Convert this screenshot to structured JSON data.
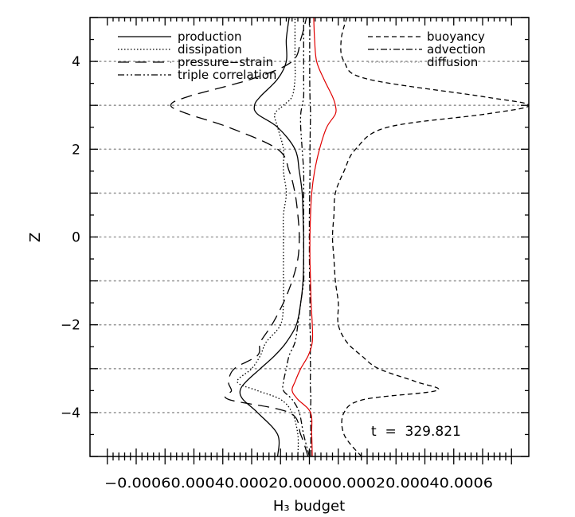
{
  "chart_data": {
    "type": "line",
    "title": "",
    "xlabel": "H₃ budget",
    "ylabel": "Z",
    "xlim": [
      -0.00076,
      0.00076
    ],
    "ylim": [
      -5,
      5
    ],
    "x_tick_values": [
      -0.0006,
      -0.0004,
      -0.0002,
      0.0,
      0.0002,
      0.0004,
      0.0006
    ],
    "x_tick_labels_text": "−0.00060.00040.00020.00000.00020.00040.0006",
    "y_ticks": [
      -4,
      -2,
      0,
      2,
      4
    ],
    "y_tick_labels": [
      "−4",
      "−2",
      "0",
      "2",
      "4"
    ],
    "grid": "horizontal dotted lines at z = -3, -1, 1, 3 and 0, 2 (dotted)",
    "legend_placement": "top",
    "legend_left": [
      {
        "name": "production",
        "style": "solid"
      },
      {
        "name": "dissipation",
        "style": "dotted"
      },
      {
        "name": "pressure−strain",
        "style": "long-dash"
      },
      {
        "name": "triple correlation",
        "style": "dash-dot-dot"
      }
    ],
    "legend_right": [
      {
        "name": "buoyancy",
        "style": "dashed"
      },
      {
        "name": "advection",
        "style": "dash-dot"
      },
      {
        "name": "diffusion",
        "style": "dotted-gray"
      }
    ],
    "annotation": "t  =  329.821",
    "z_samples": [
      -5,
      -4.5,
      -4,
      -3.7,
      -3.5,
      -3.3,
      -3,
      -2.7,
      -2.4,
      -2,
      -1.5,
      -1,
      -0.5,
      0,
      0.5,
      1,
      1.5,
      2,
      2.5,
      2.8,
      3,
      3.2,
      3.6,
      4,
      4.5,
      5
    ],
    "series": [
      {
        "name": "production",
        "color": "#000000",
        "dash": "",
        "x": [
          -0.00011,
          -0.00011,
          -0.00018,
          -0.00023,
          -0.00024,
          -0.00022,
          -0.00017,
          -0.00012,
          -8e-05,
          -4.5e-05,
          -3e-05,
          -2.2e-05,
          -2e-05,
          -2e-05,
          -2.2e-05,
          -2.5e-05,
          -3.5e-05,
          -5e-05,
          -0.00011,
          -0.00018,
          -0.00019,
          -0.00017,
          -0.00011,
          -8e-05,
          -8e-05,
          -7e-05
        ]
      },
      {
        "name": "dissipation",
        "color": "#000000",
        "dash": "1.5 2.5",
        "x": [
          -4e-05,
          -4e-05,
          -6e-05,
          -0.0001,
          -0.00018,
          -0.00025,
          -0.0002,
          -0.00017,
          -0.00015,
          -0.0001,
          -9e-05,
          -9e-05,
          -9e-05,
          -9e-05,
          -9e-05,
          -8e-05,
          -9e-05,
          -9e-05,
          -0.00011,
          -0.00012,
          -9e-05,
          -6e-05,
          -5e-05,
          -5e-05,
          -5e-05,
          -5e-05
        ]
      },
      {
        "name": "pressure−strain",
        "color": "#000000",
        "dash": "14 8",
        "x": [
          -5e-06,
          -3e-05,
          -7e-05,
          -0.00028,
          -0.00027,
          -0.00028,
          -0.00026,
          -0.00018,
          -0.00017,
          -0.00013,
          -9e-05,
          -6e-05,
          -4e-05,
          -3.5e-05,
          -4e-05,
          -5e-05,
          -7e-05,
          -0.00011,
          -0.00028,
          -0.00042,
          -0.00048,
          -0.00042,
          -0.0002,
          -6e-05,
          -3e-05,
          -1e-05
        ]
      },
      {
        "name": "triple correlation",
        "color": "#000000",
        "dash": "8 3 2 3 2 3",
        "x": [
          0.0,
          -2e-05,
          -3.5e-05,
          -6e-05,
          -9e-05,
          -9e-05,
          -8e-05,
          -7e-05,
          -5e-05,
          -4e-05,
          -3e-05,
          -2e-05,
          -2e-05,
          -2e-05,
          -2e-05,
          -2e-05,
          -2e-05,
          -2.5e-05,
          -3e-05,
          -3e-05,
          -2.5e-05,
          -2e-05,
          -2e-05,
          -2e-05,
          -2e-05,
          -2e-05
        ]
      },
      {
        "name": "buoyancy",
        "color": "#000000",
        "dash": "6 4",
        "x": [
          0.00018,
          0.00012,
          0.00012,
          0.00019,
          0.00044,
          0.00037,
          0.00024,
          0.00018,
          0.00013,
          0.0001,
          0.0001,
          9e-05,
          8.5e-05,
          8e-05,
          8.5e-05,
          9e-05,
          0.00012,
          0.00016,
          0.00027,
          0.00061,
          0.00076,
          0.0006,
          0.0002,
          0.00012,
          0.00011,
          0.00013
        ]
      },
      {
        "name": "advection",
        "color": "#000000",
        "dash": "8 3 2 3",
        "x": [
          5e-06,
          5e-06,
          4e-06,
          5e-06,
          4e-06,
          3e-06,
          4e-06,
          3e-06,
          4e-06,
          2e-06,
          2e-06,
          1e-06,
          0.0,
          0.0,
          0.0,
          1e-06,
          2e-06,
          2e-06,
          3e-06,
          4e-06,
          3e-06,
          2e-06,
          1e-06,
          1e-06,
          1e-06,
          2e-06
        ]
      },
      {
        "name": "diffusion",
        "color": "#e00000",
        "dash": "",
        "x": [
          1e-05,
          8e-06,
          4e-06,
          -4e-05,
          -6e-05,
          -5e-05,
          -3e-05,
          -4e-06,
          1e-05,
          1e-05,
          6e-06,
          4e-06,
          2e-06,
          2e-06,
          4e-06,
          8e-06,
          1.8e-05,
          3.5e-05,
          6e-05,
          9e-05,
          9e-05,
          8e-05,
          5e-05,
          2.5e-05,
          1.8e-05,
          1.5e-05
        ]
      }
    ]
  }
}
